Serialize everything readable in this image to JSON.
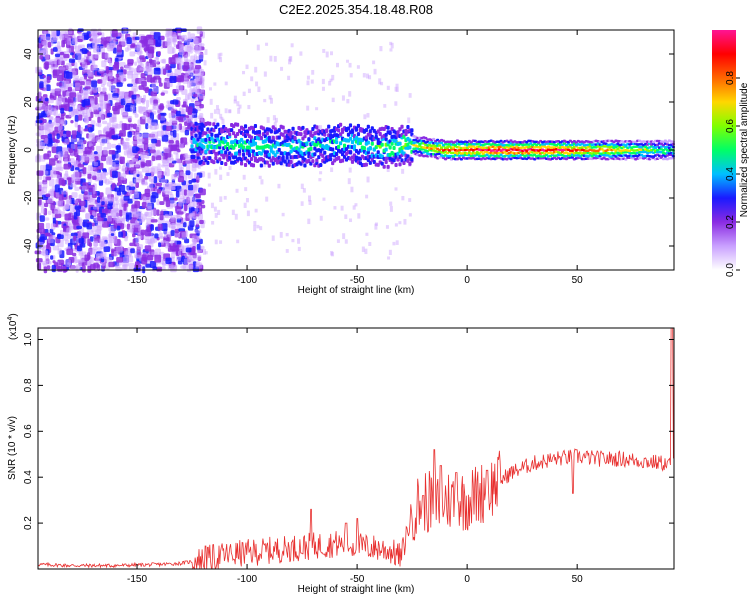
{
  "title": "C2E2.2025.354.18.48.R08",
  "chart_data": [
    {
      "type": "heatmap",
      "xlabel": "Height of straight line (km)",
      "ylabel": "Frequency (Hz)",
      "xlim": [
        -195,
        94
      ],
      "ylim": [
        -50,
        50
      ],
      "xticks": [
        -150,
        -100,
        -50,
        0,
        50
      ],
      "yticks": [
        -40,
        -20,
        0,
        20,
        40
      ],
      "colorbar": {
        "label": "Normalized spectral amplitude",
        "range": [
          0,
          1
        ],
        "ticks": [
          "0.0",
          "0.2",
          "0.4",
          "0.6",
          "0.8"
        ],
        "tick_values": [
          0,
          0.2,
          0.4,
          0.6,
          0.8
        ],
        "colormap": [
          "#ffffff",
          "#c9a0ff",
          "#8a2be2",
          "#1a1aff",
          "#00bfff",
          "#00ff66",
          "#80ff00",
          "#ffd700",
          "#ff6600",
          "#ff0000",
          "#ff1493"
        ]
      },
      "ridge": {
        "description_points": [
          {
            "x": -125,
            "f": 3,
            "a": 0.45
          },
          {
            "x": -100,
            "f": 2,
            "a": 0.5
          },
          {
            "x": -75,
            "f": 1,
            "a": 0.45
          },
          {
            "x": -55,
            "f": 3,
            "a": 0.45
          },
          {
            "x": -40,
            "f": 1,
            "a": 0.5
          },
          {
            "x": -25,
            "f": 2,
            "a": 0.6
          },
          {
            "x": -10,
            "f": 0,
            "a": 0.85
          },
          {
            "x": 10,
            "f": 0,
            "a": 0.95
          },
          {
            "x": 40,
            "f": 0,
            "a": 0.95
          },
          {
            "x": 94,
            "f": 0,
            "a": 0.5
          }
        ]
      },
      "noise_region_xmax": -125
    },
    {
      "type": "line",
      "xlabel": "Height of straight line (km)",
      "ylabel": "SNR (10 * v/v)",
      "y_multiplier": "(x10^4)",
      "xlim": [
        -195,
        94
      ],
      "ylim": [
        0,
        1.05
      ],
      "xticks": [
        -150,
        -100,
        -50,
        0,
        50
      ],
      "yticks": [
        0.2,
        0.4,
        0.6,
        0.8,
        1.0
      ],
      "ytick_labels": [
        "0.2",
        "0.4",
        "0.6",
        "0.8",
        "1.0"
      ],
      "color": "#e8302f",
      "series": [
        {
          "x": [
            -195,
            -180,
            -160,
            -140,
            -130,
            -120,
            -110,
            -100,
            -90,
            -80,
            -70,
            -60,
            -50,
            -40,
            -35,
            -30,
            -25,
            -20,
            -15,
            -10,
            -5,
            0,
            10,
            20,
            30,
            40,
            50,
            60,
            70,
            80,
            90,
            94
          ],
          "values": [
            0.02,
            0.015,
            0.015,
            0.02,
            0.025,
            0.04,
            0.06,
            0.07,
            0.08,
            0.09,
            0.1,
            0.11,
            0.1,
            0.09,
            0.08,
            0.05,
            0.25,
            0.3,
            0.28,
            0.3,
            0.3,
            0.3,
            0.35,
            0.42,
            0.46,
            0.48,
            0.49,
            0.48,
            0.48,
            0.47,
            0.46,
            0.45
          ]
        }
      ],
      "spikes": [
        {
          "x": -119,
          "y": 0.1
        },
        {
          "x": -71,
          "y": 0.26
        },
        {
          "x": -55,
          "y": 0.2
        },
        {
          "x": -50,
          "y": 0.22
        },
        {
          "x": -20,
          "y": 0.32
        },
        {
          "x": -15,
          "y": 0.52
        },
        {
          "x": -12,
          "y": 0.45
        },
        {
          "x": -5,
          "y": 0.42
        },
        {
          "x": 9,
          "y": 0.43
        },
        {
          "x": 48,
          "y": 0.33
        },
        {
          "x": 93,
          "y": 1.05
        }
      ]
    }
  ]
}
